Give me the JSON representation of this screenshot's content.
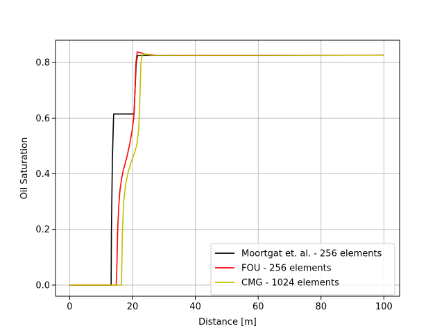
{
  "chart_data": {
    "type": "line",
    "title": "",
    "xlabel": "Distance [m]",
    "ylabel": "Oil Saturation",
    "xlim": [
      -4.5,
      105
    ],
    "ylim": [
      -0.04,
      0.88
    ],
    "xticks": [
      0,
      20,
      40,
      60,
      80,
      100
    ],
    "xtick_labels": [
      "0",
      "20",
      "40",
      "60",
      "80",
      "100"
    ],
    "yticks": [
      0.0,
      0.2,
      0.4,
      0.6,
      0.8
    ],
    "ytick_labels": [
      "0.0",
      "0.2",
      "0.4",
      "0.6",
      "0.8"
    ],
    "grid": true,
    "legend_position": "lower-right",
    "series": [
      {
        "name": "Moortgat et. al. - 256 elements",
        "color": "#000000",
        "x": [
          0,
          13.2,
          13.3,
          13.6,
          14.0,
          20.5,
          20.8,
          21.2,
          21.6,
          30,
          60,
          100
        ],
        "y": [
          0.0,
          0.0,
          0.2,
          0.45,
          0.615,
          0.615,
          0.7,
          0.8,
          0.825,
          0.825,
          0.825,
          0.826
        ]
      },
      {
        "name": "FOU - 256 elements",
        "color": "#ff0000",
        "x": [
          0,
          14.8,
          15.0,
          15.3,
          15.6,
          16.0,
          16.5,
          17.0,
          17.5,
          18.2,
          19.0,
          19.8,
          20.4,
          20.8,
          21.1,
          21.5,
          22.2,
          24,
          27,
          40,
          100
        ],
        "y": [
          0.0,
          0.0,
          0.05,
          0.2,
          0.28,
          0.34,
          0.38,
          0.41,
          0.43,
          0.46,
          0.5,
          0.55,
          0.6,
          0.7,
          0.8,
          0.838,
          0.836,
          0.83,
          0.826,
          0.826,
          0.826
        ]
      },
      {
        "name": "CMG - 1024 elements",
        "color": "#bfbf00",
        "x": [
          0,
          16.5,
          16.8,
          17.2,
          17.8,
          18.5,
          19.5,
          20.5,
          21.3,
          21.9,
          22.3,
          22.7,
          23.2,
          24,
          26,
          40,
          100
        ],
        "y": [
          0.0,
          0.0,
          0.2,
          0.3,
          0.36,
          0.4,
          0.44,
          0.47,
          0.5,
          0.55,
          0.65,
          0.8,
          0.83,
          0.83,
          0.826,
          0.825,
          0.826
        ]
      }
    ]
  }
}
